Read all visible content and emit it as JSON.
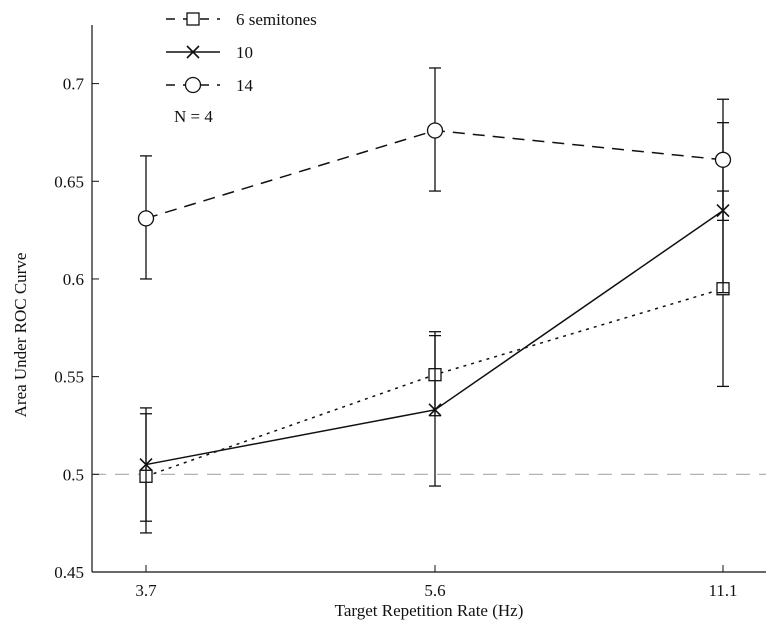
{
  "chart_data": {
    "type": "line",
    "title": "",
    "xlabel": "Target Repetition Rate (Hz)",
    "ylabel": "Area Under ROC Curve",
    "categories": [
      "3.7",
      "5.6",
      "11.1"
    ],
    "yticks": [
      "0.45",
      "0.5",
      "0.55",
      "0.6",
      "0.65",
      "0.7"
    ],
    "ylim": [
      0.45,
      0.73
    ],
    "grid": false,
    "legend_position": "top-left",
    "annotation": "N = 4",
    "reference_line": {
      "y": 0.5,
      "style": "dashed",
      "color": "#aaaaaa"
    },
    "series": [
      {
        "name": "6 semitones",
        "marker": "square",
        "line_style": "dotted",
        "legend_line_style": "dashed",
        "values": [
          0.499,
          0.551,
          0.595
        ],
        "error_low": [
          0.476,
          0.53,
          0.545
        ],
        "error_high": [
          0.531,
          0.571,
          0.645
        ]
      },
      {
        "name": "10",
        "marker": "x",
        "line_style": "solid",
        "values": [
          0.505,
          0.533,
          0.635
        ],
        "error_low": [
          0.47,
          0.494,
          0.593
        ],
        "error_high": [
          0.534,
          0.573,
          0.68
        ]
      },
      {
        "name": "14",
        "marker": "circle",
        "line_style": "dashed",
        "values": [
          0.631,
          0.676,
          0.661
        ],
        "error_low": [
          0.6,
          0.645,
          0.63
        ],
        "error_high": [
          0.663,
          0.708,
          0.692
        ]
      }
    ]
  }
}
